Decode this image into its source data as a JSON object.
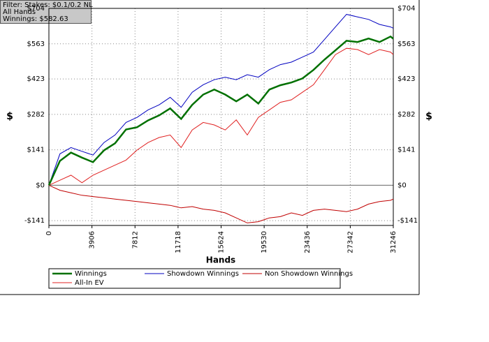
{
  "chart_data": {
    "type": "line",
    "annotations": [
      "Filter: Stakes: $0.1/0.2 NL",
      "All Hands",
      "Winnings: $582.63"
    ],
    "x_label": "Hands",
    "y_label": "$",
    "y2_label": "$",
    "x": [
      0,
      1000,
      2000,
      3000,
      4000,
      5000,
      6000,
      7000,
      8000,
      9000,
      10000,
      11000,
      12000,
      13000,
      14000,
      15000,
      16000,
      17000,
      18000,
      19000,
      20000,
      21000,
      22000,
      23000,
      24000,
      25000,
      26000,
      27000,
      28000,
      29000,
      30000,
      31000,
      31246
    ],
    "series": [
      {
        "name": "Winnings",
        "color": "#007000",
        "width": 2.5,
        "values": [
          0,
          97,
          130,
          110,
          92,
          139,
          167,
          222,
          231,
          258,
          278,
          306,
          264,
          320,
          361,
          381,
          361,
          334,
          361,
          325,
          381,
          398,
          409,
          425,
          459,
          500,
          537,
          575,
          570,
          584,
          570,
          592,
          583
        ]
      },
      {
        "name": "Showdown Winnings",
        "color": "#0000c0",
        "width": 1,
        "values": [
          0,
          125,
          150,
          135,
          120,
          170,
          200,
          250,
          270,
          300,
          320,
          350,
          310,
          370,
          400,
          420,
          430,
          420,
          440,
          430,
          460,
          480,
          490,
          510,
          530,
          580,
          630,
          680,
          670,
          660,
          640,
          630,
          625
        ]
      },
      {
        "name": "Non Showdown Winnings",
        "color": "#c00000",
        "width": 1,
        "values": [
          0,
          -20,
          -30,
          -40,
          -45,
          -50,
          -55,
          -60,
          -65,
          -70,
          -75,
          -80,
          -90,
          -85,
          -95,
          -100,
          -110,
          -130,
          -150,
          -145,
          -130,
          -125,
          -110,
          -120,
          -100,
          -95,
          -100,
          -105,
          -95,
          -75,
          -65,
          -60,
          -55
        ]
      },
      {
        "name": "All-In EV",
        "color": "#e02020",
        "width": 1,
        "values": [
          0,
          20,
          40,
          10,
          40,
          60,
          80,
          100,
          140,
          170,
          190,
          200,
          150,
          220,
          250,
          240,
          220,
          260,
          200,
          270,
          300,
          330,
          340,
          370,
          400,
          460,
          520,
          545,
          540,
          520,
          540,
          530,
          520
        ]
      }
    ],
    "xlim": [
      0,
      31246
    ],
    "xticks": [
      0,
      3906,
      7812,
      11718,
      15624,
      19530,
      23436,
      27342,
      31246
    ],
    "ylim": [
      -160,
      704
    ],
    "yticks": [
      {
        "value": -141,
        "label": "-$141"
      },
      {
        "value": 0,
        "label": "$0"
      },
      {
        "value": 141,
        "label": "$141"
      },
      {
        "value": 282,
        "label": "$282"
      },
      {
        "value": 423,
        "label": "$423"
      },
      {
        "value": 563,
        "label": "$563"
      },
      {
        "value": 704,
        "label": "$704"
      }
    ],
    "grid": true
  }
}
